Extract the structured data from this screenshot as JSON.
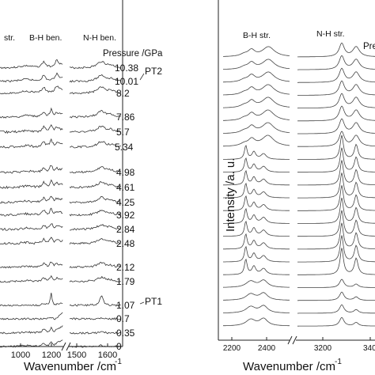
{
  "chart_data": [
    {
      "type": "line",
      "panel": "left",
      "xlabel": "Wavenumber /cm",
      "xlabel_superscript": "-1",
      "x_ticks": [
        "1000",
        "1200",
        "1500",
        "1600"
      ],
      "x_segments": [
        [
          930,
          1270
        ],
        [
          1450,
          1660
        ]
      ],
      "axis_break": true,
      "band_labels": [
        "str.",
        "B-H ben.",
        "N-H ben."
      ],
      "legend_title": "Pressure /GPa",
      "phase_labels": [
        {
          "text": "PT2",
          "at_pressure": "10.01"
        },
        {
          "text": "PT1",
          "at_pressure": "1.07"
        }
      ],
      "series": [
        {
          "name": "10.38"
        },
        {
          "name": "10.01"
        },
        {
          "name": "8.2"
        },
        {
          "name": "7.86"
        },
        {
          "name": "5.7"
        },
        {
          "name": "5.34"
        },
        {
          "name": "4.98"
        },
        {
          "name": "4.61"
        },
        {
          "name": "4.25"
        },
        {
          "name": "3.92"
        },
        {
          "name": "2.84"
        },
        {
          "name": "2.48"
        },
        {
          "name": "2.12"
        },
        {
          "name": "1.79"
        },
        {
          "name": "1.07"
        },
        {
          "name": "0.7"
        },
        {
          "name": "0.35"
        },
        {
          "name": "0"
        }
      ],
      "peaks_cm1": [
        1070,
        1165,
        1205,
        1235,
        1580
      ]
    },
    {
      "type": "line",
      "panel": "right",
      "xlabel": "Wavenumber /cm",
      "xlabel_superscript": "-1",
      "ylabel": "Intensity /a. u.",
      "x_ticks": [
        "2200",
        "2400",
        "3200",
        "340"
      ],
      "x_segments": [
        [
          2150,
          2560
        ],
        [
          3050,
          3400
        ]
      ],
      "axis_break": true,
      "band_labels": [
        "B-H str.",
        "N-H str."
      ],
      "legend_title_clipped": "Pre",
      "curve_count": 22,
      "peaks_cm1": [
        2280,
        2330,
        2380,
        2420,
        3250,
        3315
      ]
    }
  ]
}
